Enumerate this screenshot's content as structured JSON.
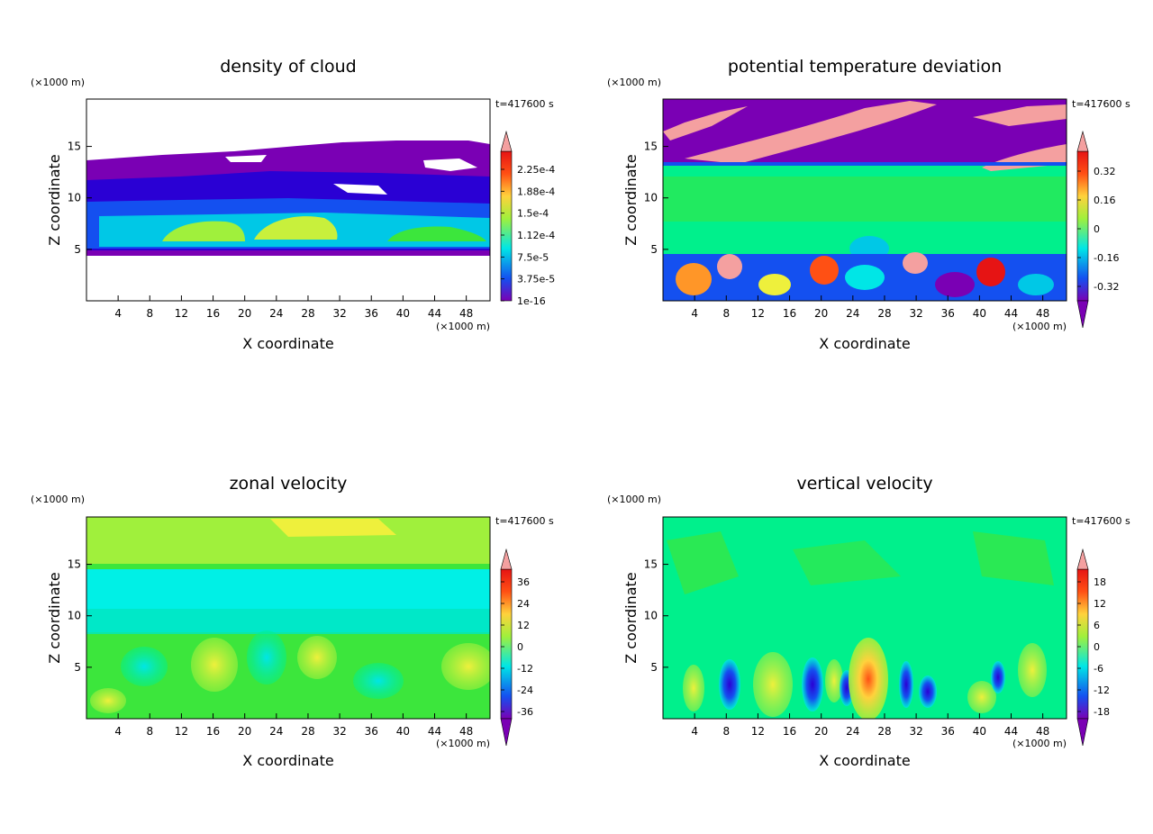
{
  "colors": {
    "palette": [
      "#7a00b4",
      "#2a00d4",
      "#1450f0",
      "#00a0ff",
      "#00e6e6",
      "#00f08c",
      "#3ce63c",
      "#a0f03c",
      "#eef03c",
      "#ffd23c",
      "#ff9628",
      "#ff5014",
      "#e61414",
      "#f4a0a0"
    ]
  },
  "chart_data": [
    {
      "type": "heatmap",
      "title": "density of cloud",
      "xlabel": "X coordinate",
      "ylabel": "Z coordinate",
      "x_unit": "(×1000 m)",
      "y_unit": "(×1000 m)",
      "time_label": "t=417600 s",
      "xlim": [
        0,
        51
      ],
      "ylim": [
        0,
        19.6
      ],
      "xticks": [
        4,
        8,
        12,
        16,
        20,
        24,
        28,
        32,
        36,
        40,
        44,
        48
      ],
      "yticks": [
        5,
        10,
        15
      ],
      "colorbar_labels": [
        "1e-16",
        "3.75e-5",
        "7.5e-5",
        "1.12e-4",
        "1.5e-4",
        "1.88e-4",
        "2.25e-4"
      ],
      "colorbar_values": [
        0,
        3.75e-05,
        7.5e-05,
        0.000112,
        0.00015,
        0.000188,
        0.000225
      ],
      "regions": [
        {
          "x": [
            0,
            51
          ],
          "z": [
            4.5,
            14
          ],
          "value": 1e-16
        },
        {
          "x": [
            0,
            51
          ],
          "z": [
            5,
            12
          ],
          "value": 3.75e-05
        },
        {
          "x": [
            0,
            51
          ],
          "z": [
            5.5,
            9
          ],
          "value": 7.5e-05
        },
        {
          "x": [
            10,
            20
          ],
          "z": [
            6,
            8.5
          ],
          "value": 0.000112
        },
        {
          "x": [
            22,
            32
          ],
          "z": [
            6,
            9
          ],
          "value": 0.00015
        }
      ]
    },
    {
      "type": "heatmap",
      "title": "potential temperature deviation",
      "xlabel": "X coordinate",
      "ylabel": "Z coordinate",
      "x_unit": "(×1000 m)",
      "y_unit": "(×1000 m)",
      "time_label": "t=417600 s",
      "xlim": [
        0,
        51
      ],
      "ylim": [
        0,
        19.6
      ],
      "xticks": [
        4,
        8,
        12,
        16,
        20,
        24,
        28,
        32,
        36,
        40,
        44,
        48
      ],
      "yticks": [
        5,
        10,
        15
      ],
      "colorbar_labels": [
        "-0.32",
        "-0.16",
        "0",
        "0.16",
        "0.32"
      ],
      "colorbar_values": [
        -0.32,
        -0.16,
        0,
        0.16,
        0.32
      ],
      "regions": [
        {
          "x": [
            0,
            51
          ],
          "z": [
            13.5,
            19.6
          ],
          "value": -0.4
        },
        {
          "x": [
            0,
            51
          ],
          "z": [
            4.5,
            13.5
          ],
          "value": 0
        },
        {
          "x": [
            0,
            51
          ],
          "z": [
            0,
            4.5
          ],
          "value": -0.16
        },
        {
          "x": [
            2,
            8
          ],
          "z": [
            0.5,
            4
          ],
          "value": 0.32
        },
        {
          "x": [
            30,
            34
          ],
          "z": [
            2,
            4.5
          ],
          "value": 0.4
        },
        {
          "x": [
            6,
            30
          ],
          "z": [
            15,
            19
          ],
          "value": 0.4
        }
      ]
    },
    {
      "type": "heatmap",
      "title": "zonal velocity",
      "xlabel": "X coordinate",
      "ylabel": "Z coordinate",
      "x_unit": "(×1000 m)",
      "y_unit": "(×1000 m)",
      "time_label": "t=417600 s",
      "xlim": [
        0,
        51
      ],
      "ylim": [
        0,
        19.6
      ],
      "xticks": [
        4,
        8,
        12,
        16,
        20,
        24,
        28,
        32,
        36,
        40,
        44,
        48
      ],
      "yticks": [
        5,
        10,
        15
      ],
      "colorbar_labels": [
        "-36",
        "-24",
        "-12",
        "0",
        "12",
        "24",
        "36"
      ],
      "colorbar_values": [
        -36,
        -24,
        -12,
        0,
        12,
        24,
        36
      ],
      "regions": [
        {
          "x": [
            0,
            51
          ],
          "z": [
            15,
            19.6
          ],
          "value": 6
        },
        {
          "x": [
            0,
            51
          ],
          "z": [
            8,
            15
          ],
          "value": -6
        },
        {
          "x": [
            0,
            51
          ],
          "z": [
            0,
            8
          ],
          "value": 0
        },
        {
          "x": [
            14,
            18
          ],
          "z": [
            2,
            6
          ],
          "value": 6
        },
        {
          "x": [
            20,
            26
          ],
          "z": [
            2,
            7
          ],
          "value": -6
        }
      ]
    },
    {
      "type": "heatmap",
      "title": "vertical velocity",
      "xlabel": "X coordinate",
      "ylabel": "Z coordinate",
      "x_unit": "(×1000 m)",
      "y_unit": "(×1000 m)",
      "time_label": "t=417600 s",
      "xlim": [
        0,
        51
      ],
      "ylim": [
        0,
        19.6
      ],
      "xticks": [
        4,
        8,
        12,
        16,
        20,
        24,
        28,
        32,
        36,
        40,
        44,
        48
      ],
      "yticks": [
        5,
        10,
        15
      ],
      "colorbar_labels": [
        "-18",
        "-12",
        "-6",
        "0",
        "6",
        "12",
        "18"
      ],
      "colorbar_values": [
        -18,
        -12,
        -6,
        0,
        6,
        12,
        18
      ],
      "regions": [
        {
          "x": [
            0,
            51
          ],
          "z": [
            0,
            19.6
          ],
          "value": 0
        },
        {
          "x": [
            24,
            28
          ],
          "z": [
            1,
            8
          ],
          "value": 12
        },
        {
          "x": [
            12,
            16
          ],
          "z": [
            1,
            7
          ],
          "value": 6
        },
        {
          "x": [
            6,
            10
          ],
          "z": [
            1,
            6
          ],
          "value": -12
        },
        {
          "x": [
            18,
            22
          ],
          "z": [
            1,
            6
          ],
          "value": -12
        }
      ]
    }
  ]
}
